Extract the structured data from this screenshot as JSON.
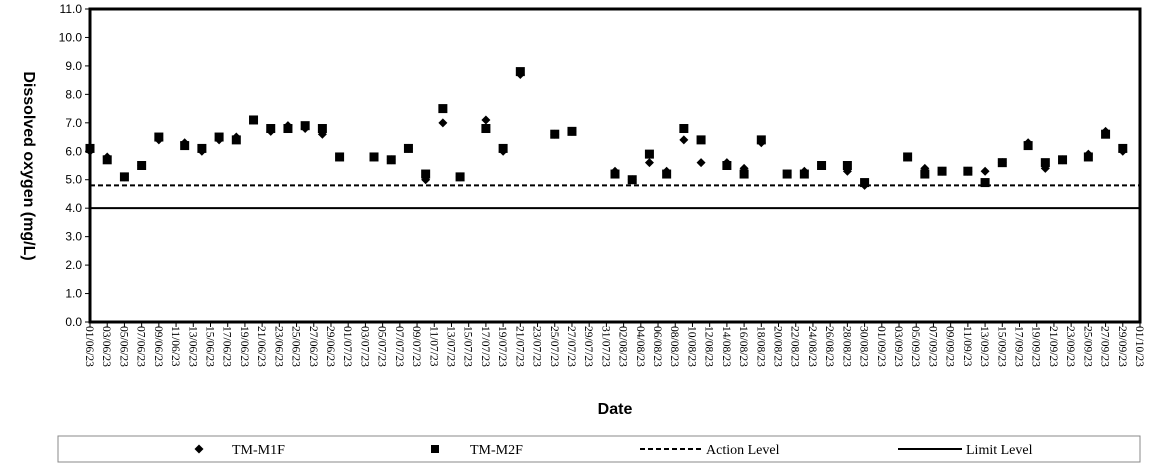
{
  "chart_data": {
    "type": "scatter",
    "title": "",
    "xlabel": "Date",
    "ylabel": "Dissolved oxygen (mg/L)",
    "ylim": [
      0,
      11
    ],
    "yticks": [
      "0.0",
      "1.0",
      "2.0",
      "3.0",
      "4.0",
      "5.0",
      "6.0",
      "7.0",
      "8.0",
      "9.0",
      "10.0",
      "11.0"
    ],
    "x_ticks": [
      "01/06/23",
      "03/06/23",
      "05/06/23",
      "07/06/23",
      "09/06/23",
      "11/06/23",
      "13/06/23",
      "15/06/23",
      "17/06/23",
      "19/06/23",
      "21/06/23",
      "23/06/23",
      "25/06/23",
      "27/06/23",
      "29/06/23",
      "01/07/23",
      "03/07/23",
      "05/07/23",
      "07/07/23",
      "09/07/23",
      "11/07/23",
      "13/07/23",
      "15/07/23",
      "17/07/23",
      "19/07/23",
      "21/07/23",
      "23/07/23",
      "25/07/23",
      "27/07/23",
      "29/07/23",
      "31/07/23",
      "02/08/23",
      "04/08/23",
      "06/08/23",
      "08/08/23",
      "10/08/23",
      "12/08/23",
      "14/08/23",
      "16/08/23",
      "18/08/23",
      "20/08/23",
      "22/08/23",
      "24/08/23",
      "26/08/23",
      "28/08/23",
      "30/08/23",
      "01/09/23",
      "03/09/23",
      "05/09/23",
      "07/09/23",
      "09/09/23",
      "11/09/23",
      "13/09/23",
      "15/09/23",
      "17/09/23",
      "19/09/23",
      "21/09/23",
      "23/09/23",
      "25/09/23",
      "27/09/23",
      "29/09/23",
      "01/10/23"
    ],
    "grid": false,
    "legend_position": "bottom",
    "series": [
      {
        "name": "TM-M1F",
        "marker": "diamond",
        "color": "#000000",
        "x": [
          "01/06/23",
          "03/06/23",
          "05/06/23",
          "07/06/23",
          "09/06/23",
          "12/06/23",
          "14/06/23",
          "16/06/23",
          "18/06/23",
          "20/06/23",
          "22/06/23",
          "24/06/23",
          "26/06/23",
          "28/06/23",
          "30/06/23",
          "04/07/23",
          "06/07/23",
          "08/07/23",
          "10/07/23",
          "12/07/23",
          "14/07/23",
          "17/07/23",
          "19/07/23",
          "21/07/23",
          "25/07/23",
          "27/07/23",
          "01/08/23",
          "03/08/23",
          "05/08/23",
          "07/08/23",
          "09/08/23",
          "11/08/23",
          "14/08/23",
          "16/08/23",
          "18/08/23",
          "21/08/23",
          "23/08/23",
          "25/08/23",
          "28/08/23",
          "30/08/23",
          "04/09/23",
          "06/09/23",
          "08/09/23",
          "11/09/23",
          "13/09/23",
          "15/09/23",
          "18/09/23",
          "20/09/23",
          "22/09/23",
          "25/09/23",
          "27/09/23",
          "29/09/23"
        ],
        "y": [
          6.0,
          5.8,
          5.1,
          5.5,
          6.4,
          6.3,
          6.0,
          6.4,
          6.5,
          7.1,
          6.7,
          6.9,
          6.8,
          6.6,
          5.8,
          5.8,
          5.7,
          6.1,
          5.0,
          7.0,
          5.1,
          7.1,
          6.0,
          8.7,
          6.6,
          6.7,
          5.3,
          5.0,
          5.6,
          5.3,
          6.4,
          5.6,
          5.6,
          5.4,
          6.3,
          5.2,
          5.3,
          5.5,
          5.3,
          4.8,
          5.8,
          5.4,
          5.3,
          5.3,
          5.3,
          5.6,
          6.3,
          5.4,
          5.7,
          5.9,
          6.7,
          6.0
        ],
        "y_note": "approximate readings"
      },
      {
        "name": "TM-M2F",
        "marker": "square",
        "color": "#000000",
        "x": [
          "01/06/23",
          "03/06/23",
          "05/06/23",
          "07/06/23",
          "09/06/23",
          "12/06/23",
          "14/06/23",
          "16/06/23",
          "18/06/23",
          "20/06/23",
          "22/06/23",
          "24/06/23",
          "26/06/23",
          "28/06/23",
          "30/06/23",
          "04/07/23",
          "06/07/23",
          "08/07/23",
          "10/07/23",
          "12/07/23",
          "14/07/23",
          "17/07/23",
          "19/07/23",
          "21/07/23",
          "25/07/23",
          "27/07/23",
          "01/08/23",
          "03/08/23",
          "05/08/23",
          "07/08/23",
          "09/08/23",
          "11/08/23",
          "14/08/23",
          "16/08/23",
          "18/08/23",
          "21/08/23",
          "23/08/23",
          "25/08/23",
          "28/08/23",
          "30/08/23",
          "04/09/23",
          "06/09/23",
          "08/09/23",
          "11/09/23",
          "13/09/23",
          "15/09/23",
          "18/09/23",
          "20/09/23",
          "22/09/23",
          "25/09/23",
          "27/09/23",
          "29/09/23"
        ],
        "y": [
          6.1,
          5.7,
          5.1,
          5.5,
          6.5,
          6.2,
          6.1,
          6.5,
          6.4,
          7.1,
          6.8,
          6.8,
          6.9,
          6.8,
          5.8,
          5.8,
          5.7,
          6.1,
          5.2,
          7.5,
          5.1,
          6.8,
          6.1,
          8.8,
          6.6,
          6.7,
          5.2,
          5.0,
          5.9,
          5.2,
          6.8,
          6.4,
          5.5,
          5.2,
          6.4,
          5.2,
          5.2,
          5.5,
          5.5,
          4.9,
          5.8,
          5.2,
          5.3,
          5.3,
          4.9,
          5.6,
          6.2,
          5.6,
          5.7,
          5.8,
          6.6,
          6.1
        ],
        "y_note": "approximate readings"
      },
      {
        "name": "Action Level",
        "style": "dashed",
        "value": 4.8
      },
      {
        "name": "Limit Level",
        "style": "solid",
        "value": 4.0
      }
    ]
  }
}
